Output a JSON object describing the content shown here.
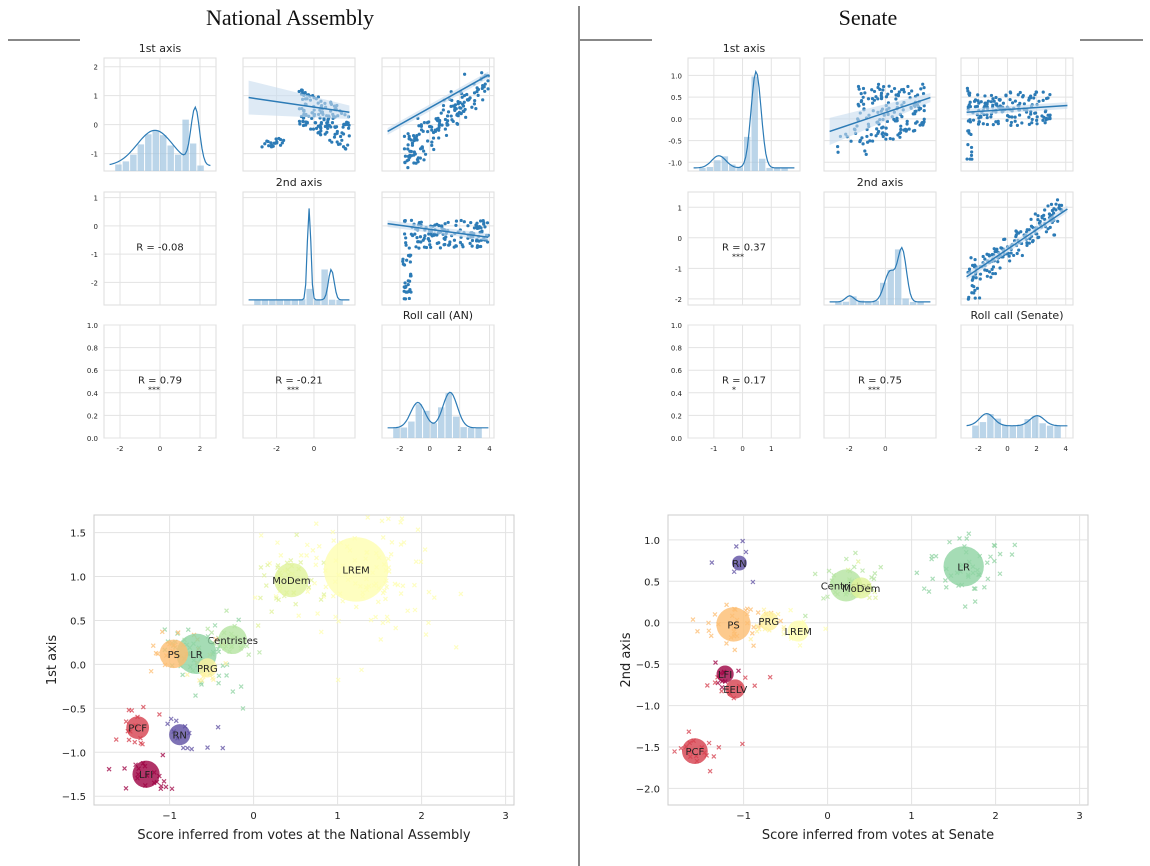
{
  "panels": {
    "left_title": "National Assembly",
    "right_title": "Senate"
  },
  "chart_data": [
    {
      "type": "scatter-matrix",
      "panel": "National Assembly",
      "diag_titles": [
        "1st axis",
        "2nd axis",
        "Roll call (AN)"
      ],
      "correlations": [
        {
          "row": 1,
          "col": 0,
          "text": "R = -0.08",
          "stars": ""
        },
        {
          "row": 2,
          "col": 0,
          "text": "R = 0.79",
          "stars": "***"
        },
        {
          "row": 2,
          "col": 1,
          "text": "R = -0.21",
          "stars": "***"
        }
      ],
      "row_ticks": [
        [
          -1,
          0,
          1,
          2
        ],
        [
          -2,
          -1,
          0,
          1
        ],
        [
          0.0,
          0.2,
          0.4,
          0.6,
          0.8,
          1.0
        ]
      ],
      "row_tick_labels": [
        [
          "-1",
          "0",
          "1",
          "2"
        ],
        [
          "-2",
          "-1",
          "0",
          "1"
        ],
        [
          "0.0",
          "0.2",
          "0.4",
          "0.6",
          "0.8",
          "1.0"
        ]
      ],
      "row_ylim": [
        [
          -1.6,
          2.3
        ],
        [
          -2.8,
          1.2
        ],
        [
          0,
          1
        ]
      ],
      "col_ticks": [
        [
          -2,
          0,
          2
        ],
        [
          -2,
          0
        ],
        [
          -2,
          0,
          2,
          4
        ]
      ],
      "col_xlim": [
        [
          -2.8,
          2.8
        ],
        [
          -3.8,
          2.2
        ],
        [
          -3.2,
          4.3
        ]
      ]
    },
    {
      "type": "scatter-matrix",
      "panel": "Senate",
      "diag_titles": [
        "1st axis",
        "2nd axis",
        "Roll call (Senate)"
      ],
      "correlations": [
        {
          "row": 1,
          "col": 0,
          "text": "R = 0.37",
          "stars": "***"
        },
        {
          "row": 2,
          "col": 0,
          "text": "R = 0.17",
          "stars": "*"
        },
        {
          "row": 2,
          "col": 1,
          "text": "R = 0.75",
          "stars": "***"
        }
      ],
      "row_ticks": [
        [
          -1.0,
          -0.5,
          0.0,
          0.5,
          1.0
        ],
        [
          -2,
          -1,
          0,
          1
        ],
        [
          0.0,
          0.2,
          0.4,
          0.6,
          0.8,
          1.0
        ]
      ],
      "row_tick_labels": [
        [
          "-1.0",
          "-0.5",
          "0.0",
          "0.5",
          "1.0"
        ],
        [
          "-2",
          "-1",
          "0",
          "1"
        ],
        [
          "0.0",
          "0.2",
          "0.4",
          "0.6",
          "0.8",
          "1.0"
        ]
      ],
      "row_ylim": [
        [
          -1.2,
          1.4
        ],
        [
          -2.2,
          1.5
        ],
        [
          0,
          1
        ]
      ],
      "col_ticks": [
        [
          -1,
          0,
          1
        ],
        [
          -2,
          0
        ],
        [
          -2,
          0,
          2,
          4
        ]
      ],
      "col_xlim": [
        [
          -1.9,
          2.0
        ],
        [
          -3.4,
          2.8
        ],
        [
          -3.2,
          4.5
        ]
      ]
    },
    {
      "type": "bubble-scatter",
      "panel": "National Assembly",
      "xlabel": "Score inferred from votes at the National Assembly",
      "ylabel": "1st axis",
      "xlim": [
        -1.9,
        3.1
      ],
      "ylim": [
        -1.6,
        1.7
      ],
      "xticks": [
        -1,
        0,
        1,
        2,
        3
      ],
      "yticks": [
        -1.5,
        -1.0,
        -0.5,
        0.0,
        0.5,
        1.0,
        1.5
      ],
      "xtick_labels": [
        "−1",
        "0",
        "1",
        "2",
        "3"
      ],
      "ytick_labels": [
        "−1.5",
        "−1.0",
        "−0.5",
        "0.0",
        "0.5",
        "1.0",
        "1.5"
      ],
      "groups": [
        {
          "name": "LREM",
          "x": 1.22,
          "y": 1.08,
          "size": 56,
          "color": "#fefeb0"
        },
        {
          "name": "MoDem",
          "x": 0.45,
          "y": 0.96,
          "size": 16,
          "color": "#e0f29a"
        },
        {
          "name": "Centristes",
          "x": -0.25,
          "y": 0.28,
          "size": 11,
          "color": "#b4e3a0"
        },
        {
          "name": "LR",
          "x": -0.68,
          "y": 0.12,
          "size": 22,
          "color": "#8fd3a2"
        },
        {
          "name": "PS",
          "x": -0.95,
          "y": 0.12,
          "size": 11,
          "color": "#fdbd71"
        },
        {
          "name": "PRG",
          "x": -0.55,
          "y": -0.04,
          "size": 5,
          "color": "#fff2a0"
        },
        {
          "name": "PCF",
          "x": -1.38,
          "y": -0.72,
          "size": 7,
          "color": "#d6404e"
        },
        {
          "name": "RN",
          "x": -0.88,
          "y": -0.8,
          "size": 6,
          "color": "#5e4fa2"
        },
        {
          "name": "LFI",
          "x": -1.28,
          "y": -1.25,
          "size": 10,
          "color": "#9e0142"
        }
      ]
    },
    {
      "type": "bubble-scatter",
      "panel": "Senate",
      "xlabel": "Score inferred from votes at Senate",
      "ylabel": "2nd axis",
      "xlim": [
        -1.9,
        3.1
      ],
      "ylim": [
        -2.2,
        1.3
      ],
      "xticks": [
        -1,
        0,
        1,
        2,
        3
      ],
      "yticks": [
        -2.0,
        -1.5,
        -1.0,
        -0.5,
        0.0,
        0.5,
        1.0
      ],
      "xtick_labels": [
        "−1",
        "0",
        "1",
        "2",
        "3"
      ],
      "ytick_labels": [
        "−2.0",
        "−1.5",
        "−1.0",
        "−0.5",
        "0.0",
        "0.5",
        "1.0"
      ],
      "groups": [
        {
          "name": "LR",
          "x": 1.62,
          "y": 0.68,
          "size": 22,
          "color": "#8fd3a2"
        },
        {
          "name": "Centristes",
          "x": 0.22,
          "y": 0.45,
          "size": 14,
          "color": "#b4e3a0"
        },
        {
          "name": "MoDem",
          "x": 0.4,
          "y": 0.42,
          "size": 6,
          "color": "#e0f29a"
        },
        {
          "name": "PS",
          "x": -1.12,
          "y": -0.02,
          "size": 16,
          "color": "#fdbd71"
        },
        {
          "name": "PRG",
          "x": -0.7,
          "y": 0.02,
          "size": 5,
          "color": "#fff2a0"
        },
        {
          "name": "LREM",
          "x": -0.35,
          "y": -0.1,
          "size": 6,
          "color": "#fefeb0"
        },
        {
          "name": "RN",
          "x": -1.05,
          "y": 0.72,
          "size": 3,
          "color": "#5e4fa2"
        },
        {
          "name": "LFI",
          "x": -1.22,
          "y": -0.62,
          "size": 4,
          "color": "#9e0142"
        },
        {
          "name": "EELV",
          "x": -1.1,
          "y": -0.8,
          "size": 5,
          "color": "#d6404e"
        },
        {
          "name": "PCF",
          "x": -1.58,
          "y": -1.55,
          "size": 9,
          "color": "#d6404e"
        }
      ]
    }
  ]
}
